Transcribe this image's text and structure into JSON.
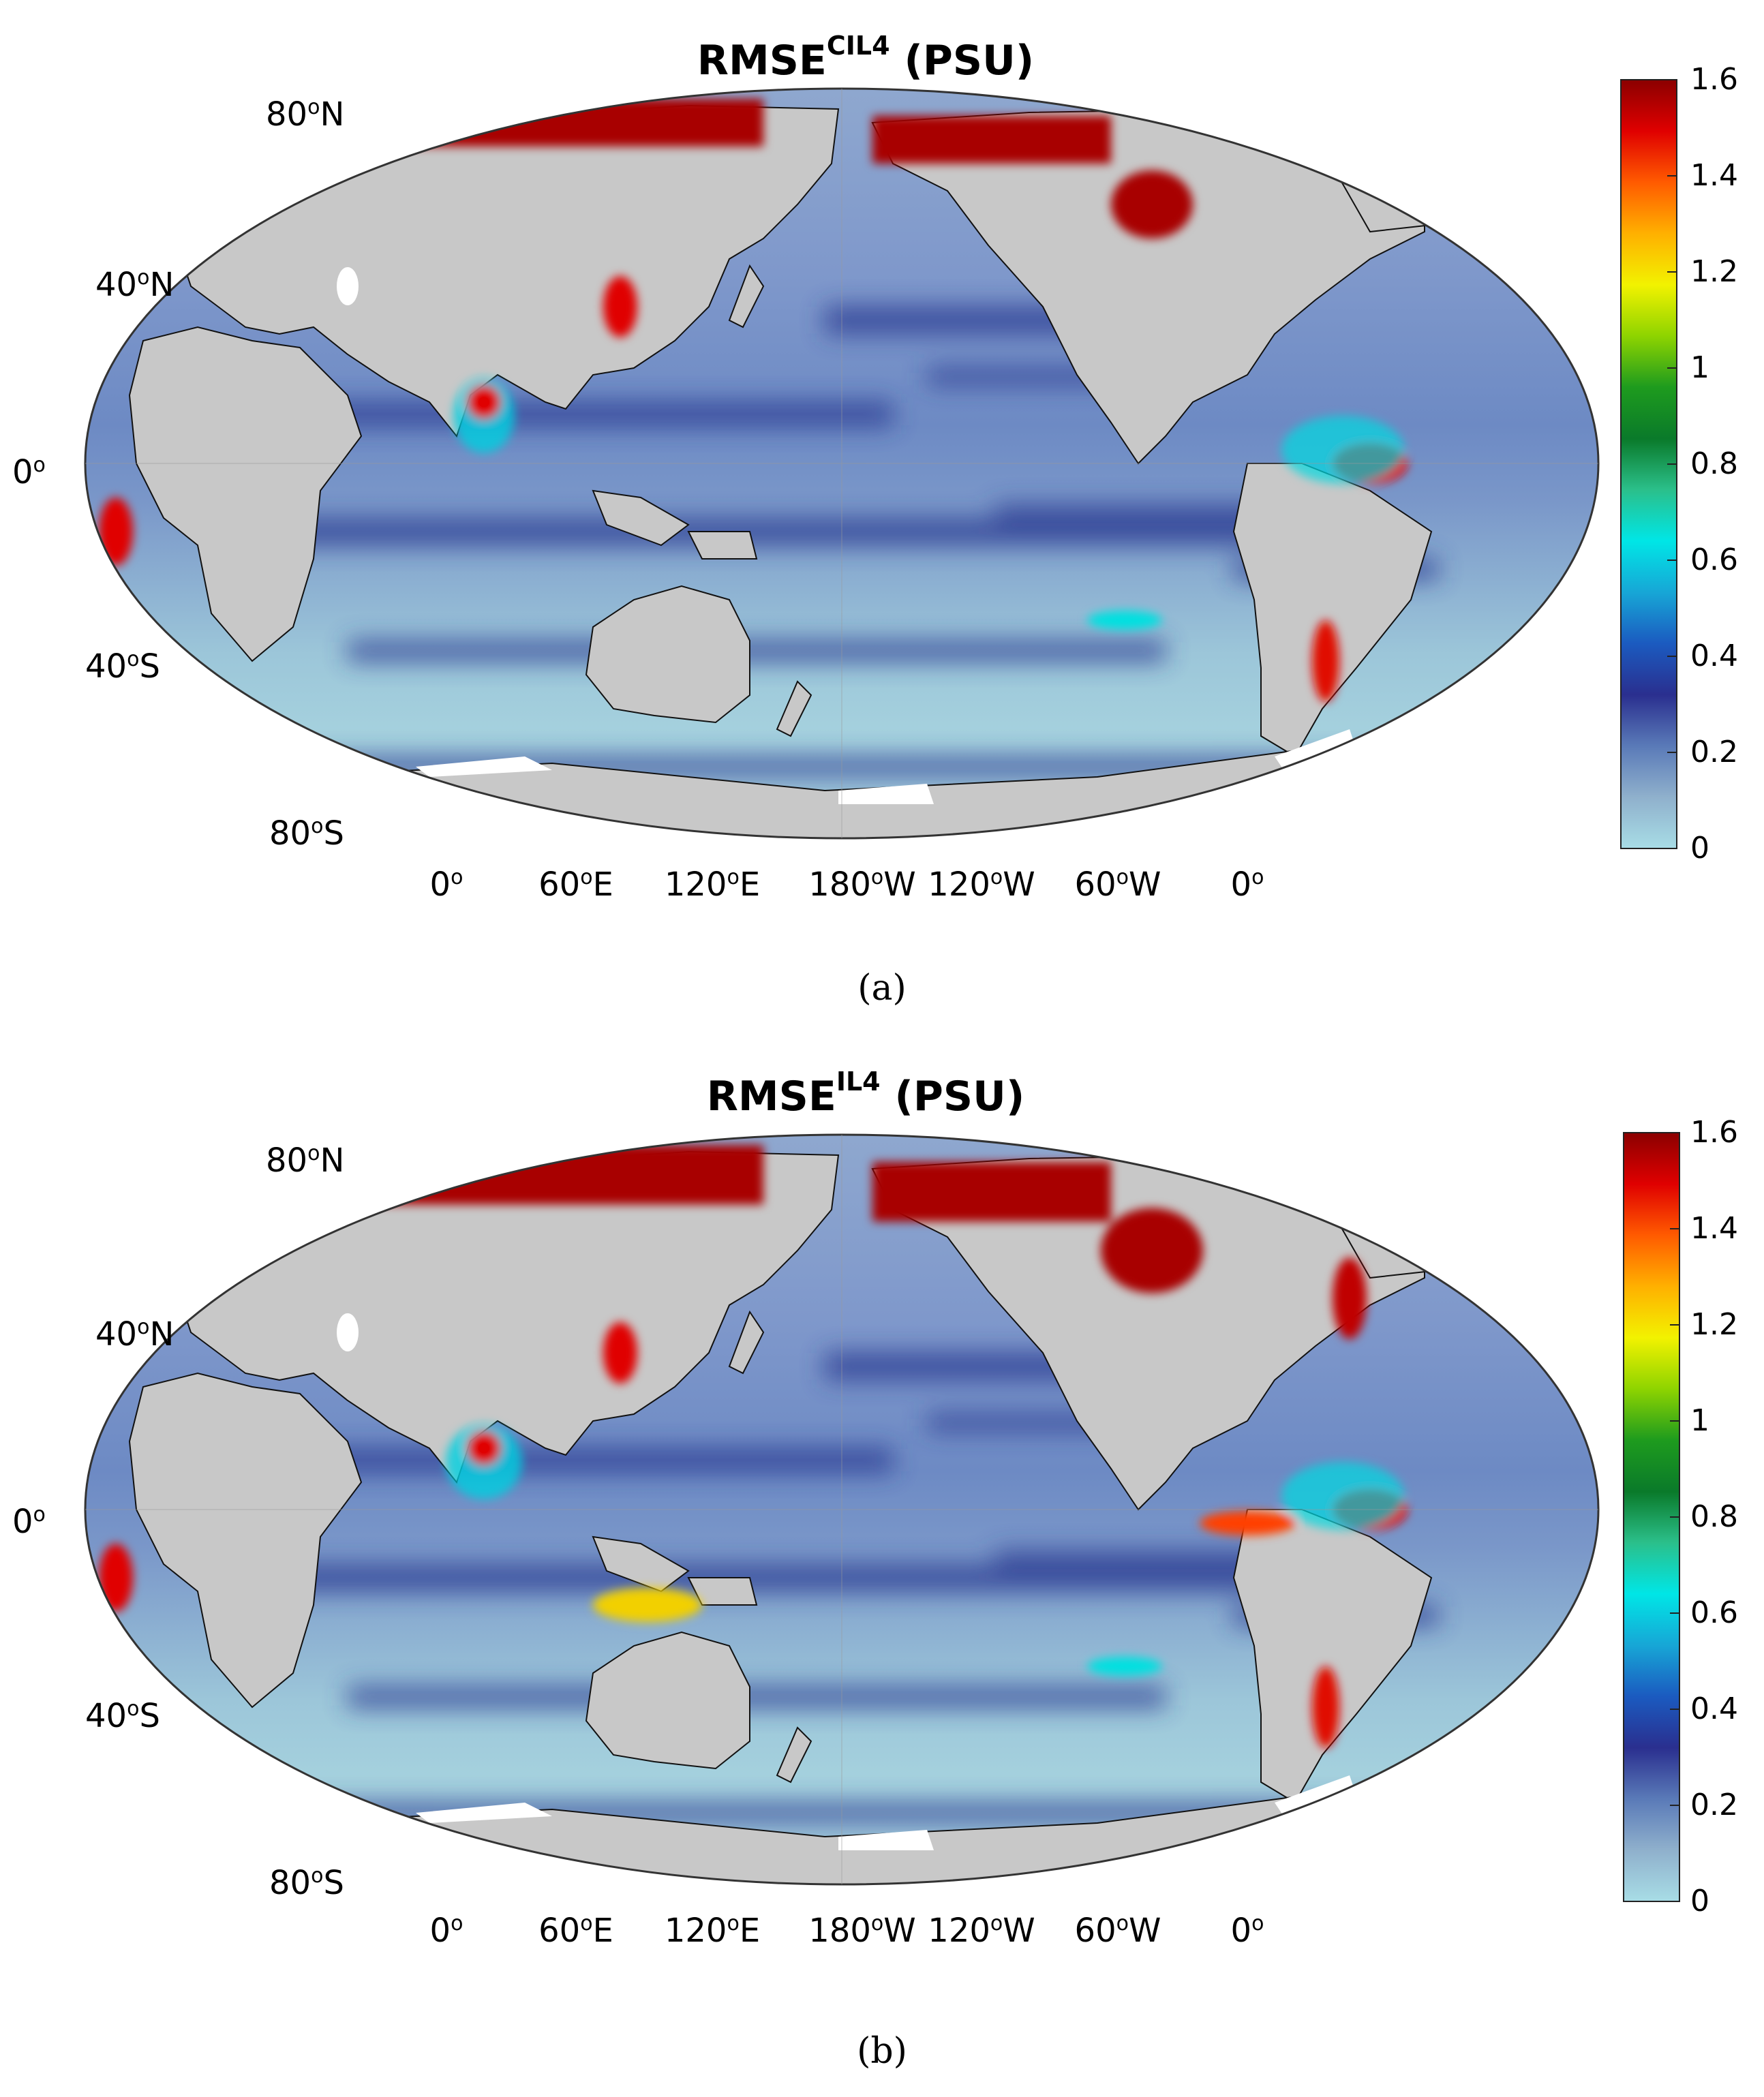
{
  "panels": [
    {
      "title_main": "RMSE",
      "title_sup": "CIL4",
      "title_unit": " (PSU)",
      "caption": "(a)"
    },
    {
      "title_main": "RMSE",
      "title_sup": "IL4",
      "title_unit": " (PSU)",
      "caption": "(b)"
    }
  ],
  "lat_labels": [
    {
      "deg": "80",
      "hemi": "N"
    },
    {
      "deg": "40",
      "hemi": "N"
    },
    {
      "deg": "0",
      "hemi": ""
    },
    {
      "deg": "40",
      "hemi": "S"
    },
    {
      "deg": "80",
      "hemi": "S"
    }
  ],
  "lon_labels": [
    {
      "deg": "0",
      "hemi": ""
    },
    {
      "deg": "60",
      "hemi": "E"
    },
    {
      "deg": "120",
      "hemi": "E"
    },
    {
      "deg": "180",
      "hemi": "W"
    },
    {
      "deg": "120",
      "hemi": "W"
    },
    {
      "deg": "60",
      "hemi": "W"
    },
    {
      "deg": "0",
      "hemi": ""
    }
  ],
  "colorbar": {
    "ticks": [
      "1.6",
      "1.4",
      "1.2",
      "1",
      "0.8",
      "0.6",
      "0.4",
      "0.2",
      "0"
    ],
    "min": 0,
    "max": 1.6,
    "colors": [
      "#a8dde6",
      "#8fb0cc",
      "#5a7ab8",
      "#2a2f8f",
      "#1b5bc0",
      "#17a6d6",
      "#00e6e6",
      "#2bbf8a",
      "#0a7a2a",
      "#1e9b1e",
      "#8fd400",
      "#f2f200",
      "#ffb000",
      "#ff5a00",
      "#e00000",
      "#8b0000"
    ]
  },
  "colors": {
    "land": "#c8c8c8",
    "ocean_low": "#a9d6e0",
    "ocean_mid": "#6f8fc4",
    "ocean_dark": "#2c3a92",
    "ice": "#ffffff",
    "hot": "#a80000"
  }
}
